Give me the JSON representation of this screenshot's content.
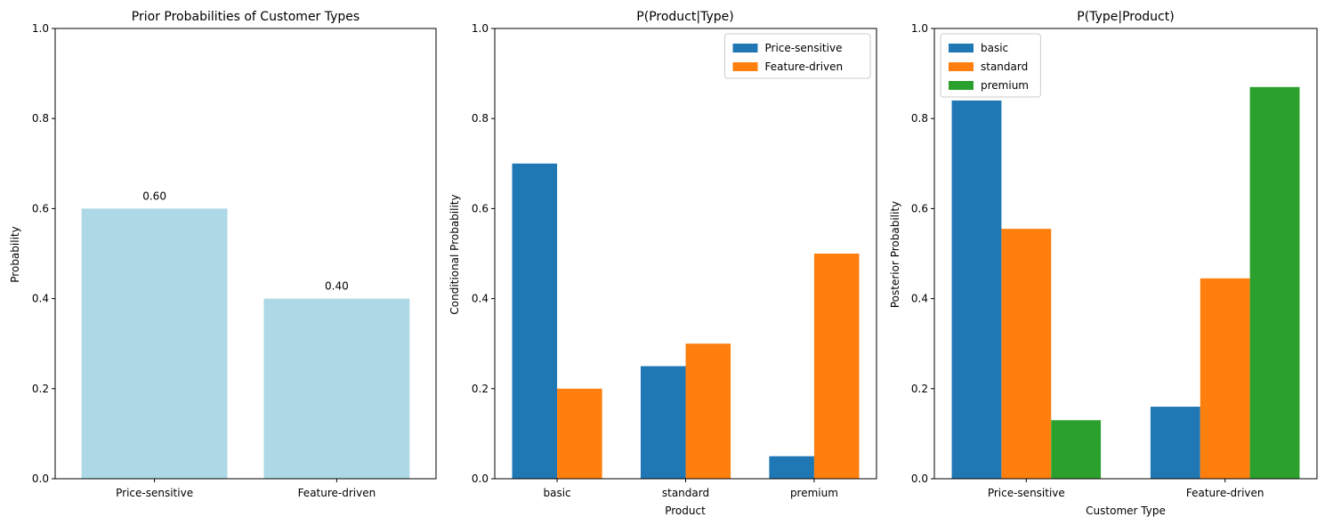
{
  "chart_data": [
    {
      "type": "bar",
      "title": "Prior Probabilities of Customer Types",
      "xlabel": "",
      "ylabel": "Probability",
      "ylim": [
        0,
        1
      ],
      "yticks": [
        "0.0",
        "0.2",
        "0.4",
        "0.6",
        "0.8",
        "1.0"
      ],
      "categories": [
        "Price-sensitive",
        "Feature-driven"
      ],
      "values": [
        0.6,
        0.4
      ],
      "data_labels": [
        "0.60",
        "0.40"
      ],
      "color": "#add8e6",
      "legend": "none"
    },
    {
      "type": "bar",
      "title": "P(Product|Type)",
      "xlabel": "Product",
      "ylabel": "Conditional Probability",
      "ylim": [
        0,
        1
      ],
      "yticks": [
        "0.0",
        "0.2",
        "0.4",
        "0.6",
        "0.8",
        "1.0"
      ],
      "categories": [
        "basic",
        "standard",
        "premium"
      ],
      "series": [
        {
          "name": "Price-sensitive",
          "values": [
            0.7,
            0.25,
            0.05
          ],
          "color": "#1f77b4"
        },
        {
          "name": "Feature-driven",
          "values": [
            0.2,
            0.3,
            0.5
          ],
          "color": "#ff7f0e"
        }
      ],
      "legend": "top-right"
    },
    {
      "type": "bar",
      "title": "P(Type|Product)",
      "xlabel": "Customer Type",
      "ylabel": "Posterior Probability",
      "ylim": [
        0,
        1
      ],
      "yticks": [
        "0.0",
        "0.2",
        "0.4",
        "0.6",
        "0.8",
        "1.0"
      ],
      "categories": [
        "Price-sensitive",
        "Feature-driven"
      ],
      "series": [
        {
          "name": "basic",
          "values": [
            0.84,
            0.16
          ],
          "color": "#1f77b4"
        },
        {
          "name": "standard",
          "values": [
            0.555,
            0.445
          ],
          "color": "#ff7f0e"
        },
        {
          "name": "premium",
          "values": [
            0.13,
            0.87
          ],
          "color": "#2ca02c"
        }
      ],
      "legend": "top-left"
    }
  ]
}
